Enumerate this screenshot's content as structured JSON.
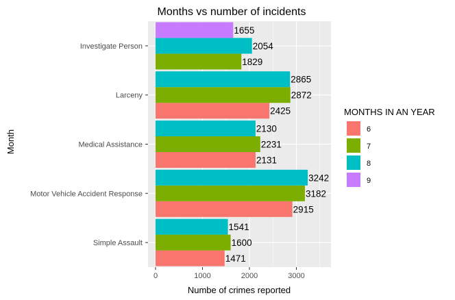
{
  "chart_data": {
    "type": "bar",
    "orientation": "horizontal",
    "title": "Months vs number of incidents",
    "xlabel": "Numbe of crimes reported",
    "ylabel": "Month",
    "xlim": [
      0,
      3500
    ],
    "x_ticks": [
      0,
      1000,
      2000,
      3000
    ],
    "x_tick_labels": [
      "0",
      "1000",
      "2000",
      "3000"
    ],
    "grid": true,
    "legend_position": "right",
    "legend_title": "MONTHS IN AN YEAR",
    "categories": [
      "Simple Assault",
      "Motor Vehicle Accident Response",
      "Medical Assistance",
      "Larceny",
      "Investigate Person"
    ],
    "series": [
      {
        "name": "6",
        "color": "#F8766D",
        "values": [
          1471,
          2915,
          2131,
          2425,
          null
        ]
      },
      {
        "name": "7",
        "color": "#7CAE00",
        "values": [
          1600,
          3182,
          2231,
          2872,
          1829
        ]
      },
      {
        "name": "8",
        "color": "#00BFC4",
        "values": [
          1541,
          3242,
          2130,
          2865,
          2054
        ]
      },
      {
        "name": "9",
        "color": "#C77CFF",
        "values": [
          null,
          null,
          null,
          null,
          1655
        ]
      }
    ]
  }
}
